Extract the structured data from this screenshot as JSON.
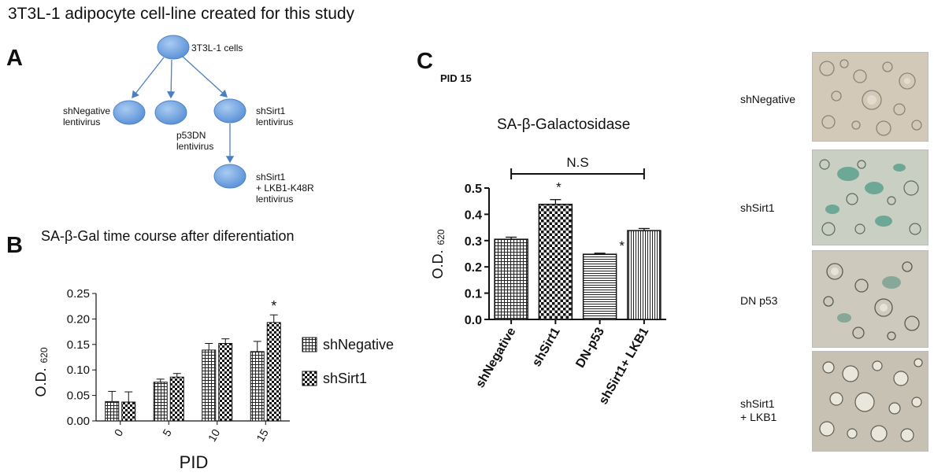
{
  "figure_title": "3T3L-1 adipocyte cell-line created for this study",
  "panel_a": {
    "letter": "A",
    "nodes": {
      "root": "3T3L-1 cells",
      "sh_negative": [
        "shNegative",
        "lentivirus"
      ],
      "p53dn": [
        "p53DN",
        "lentivirus"
      ],
      "sh_sirt1": [
        "shSirt1",
        "lentivirus"
      ],
      "lkb1": [
        "shSirt1",
        "+ LKB1-K48R",
        "lentivirus"
      ]
    }
  },
  "panel_b": {
    "letter": "B",
    "title": "SA-β-Gal time course after diferentiation",
    "ylabel": "O.D.",
    "ylabel_sub": "620",
    "xlabel": "PID",
    "significance": "*"
  },
  "panel_c": {
    "letter": "C",
    "subtitle": "PID 15",
    "title": "SA-β-Galactosidase",
    "ylabel": "O.D.",
    "ylabel_sub": "620",
    "ns_label": "N.S",
    "significance": "*"
  },
  "micrographs": {
    "labels": [
      [
        "shNegative"
      ],
      [
        "shSirt1"
      ],
      [
        "DN p53"
      ],
      [
        "shSirt1",
        "+ LKB1"
      ]
    ]
  },
  "chart_data": [
    {
      "type": "bar",
      "title": "SA-β-Gal time course after diferentiation",
      "xlabel": "PID",
      "ylabel": "O.D. 620",
      "categories": [
        "0",
        "5",
        "10",
        "15"
      ],
      "series": [
        {
          "name": "shNegative",
          "pattern": "grid",
          "values": [
            0.038,
            0.076,
            0.139,
            0.136
          ],
          "errors": [
            0.02,
            0.006,
            0.013,
            0.02
          ]
        },
        {
          "name": "shSirt1",
          "pattern": "checker",
          "values": [
            0.037,
            0.086,
            0.152,
            0.193
          ],
          "errors": [
            0.02,
            0.007,
            0.009,
            0.015
          ]
        }
      ],
      "ylim": [
        0,
        0.25
      ],
      "yticks": [
        "0.00",
        "0.05",
        "0.10",
        "0.15",
        "0.20",
        "0.25"
      ],
      "significance": [
        {
          "category": "15",
          "series": "shSirt1",
          "mark": "*"
        }
      ],
      "legend": "right"
    },
    {
      "type": "bar",
      "title": "SA-β-Galactosidase",
      "subtitle": "PID 15",
      "ylabel": "O.D. 620",
      "categories": [
        "shNegative",
        "shSirt1",
        "DN-p53",
        "shSirt1+ LKB1"
      ],
      "values": [
        0.305,
        0.438,
        0.248,
        0.338
      ],
      "errors": [
        0.008,
        0.018,
        0.004,
        0.008
      ],
      "patterns": [
        "grid",
        "checker",
        "hlines",
        "vlines"
      ],
      "ylim": [
        0,
        0.5
      ],
      "yticks": [
        "0.0",
        "0.1",
        "0.2",
        "0.3",
        "0.4",
        "0.5"
      ],
      "significance": [
        {
          "category": "shSirt1",
          "mark": "*"
        },
        {
          "category": "DN-p53",
          "mark": "*"
        }
      ],
      "bracket": {
        "from": "shNegative",
        "to": "shSirt1+ LKB1",
        "label": "N.S"
      }
    }
  ]
}
